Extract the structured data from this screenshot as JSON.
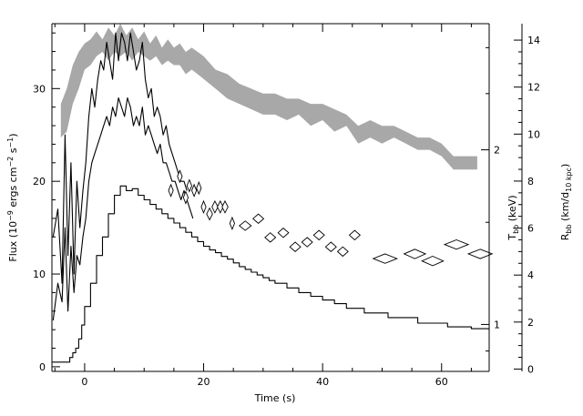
{
  "chart_data": {
    "type": "line",
    "title": "",
    "xlabel": "Time (s)",
    "xlim": [
      -5.5,
      68
    ],
    "x_ticks": [
      0,
      20,
      40,
      60
    ],
    "grid": false,
    "legend": "none",
    "axes": {
      "left": {
        "label": [
          "Flux (10",
          "−9",
          " ergs cm",
          "−2",
          " s",
          "−1",
          ")"
        ],
        "range": [
          -0.5,
          37
        ],
        "ticks": [
          0,
          10,
          20,
          30
        ]
      },
      "right_inner": {
        "label": [
          "T",
          "bb",
          " (keV)"
        ],
        "scale": "log",
        "range": [
          0.83,
          3.3
        ],
        "ticks": [
          1,
          2
        ]
      },
      "right_outer": {
        "label": [
          "R",
          "bb",
          " (km/d",
          "10 kpc",
          ")"
        ],
        "range": [
          -0.1,
          14.7
        ],
        "ticks": [
          0,
          2,
          4,
          6,
          8,
          10,
          12,
          14
        ]
      }
    },
    "series": [
      {
        "kind": "flux-hires",
        "color": "#000000",
        "x": [
          -5.3,
          -4.5,
          -3.8,
          -3.3,
          -2.8,
          -2.3,
          -1.8,
          -1.3,
          -0.8,
          -0.3,
          0.2,
          0.7,
          1.2,
          1.7,
          2.2,
          2.7,
          3.2,
          3.7,
          4.2,
          4.7,
          5.2,
          5.7,
          6.2,
          6.7,
          7.2,
          7.7,
          8.2,
          8.7,
          9.2,
          9.7,
          10.2,
          10.7,
          11.2,
          11.7,
          12.2,
          12.7,
          13.2,
          13.7,
          14.2,
          14.7,
          15.2,
          15.7,
          16.2,
          16.7,
          17.2
        ],
        "y": [
          14,
          17,
          9,
          25,
          12,
          22,
          10,
          20,
          15,
          19,
          22,
          27,
          30,
          28,
          31,
          33,
          32,
          35,
          33,
          31,
          36,
          33,
          36,
          35,
          33,
          36,
          34,
          32,
          33,
          35,
          31,
          29,
          30,
          27,
          28,
          27,
          25,
          26,
          24,
          23,
          22,
          21,
          20,
          20,
          19
        ]
      },
      {
        "kind": "flux-hires",
        "color": "#000000",
        "x": [
          -5.3,
          -4.5,
          -3.8,
          -3.3,
          -2.8,
          -2.3,
          -1.8,
          -1.3,
          -0.8,
          -0.3,
          0.2,
          0.7,
          1.2,
          1.7,
          2.2,
          2.7,
          3.2,
          3.7,
          4.2,
          4.7,
          5.2,
          5.7,
          6.2,
          6.7,
          7.2,
          7.7,
          8.2,
          8.7,
          9.2,
          9.7,
          10.2,
          10.7,
          11.2,
          11.7,
          12.2,
          12.7,
          13.2,
          13.7,
          14.2,
          14.7,
          15.2,
          15.7,
          16.2,
          16.7,
          17.2,
          17.7,
          18.2
        ],
        "y": [
          5,
          9,
          7,
          15,
          6,
          13,
          8,
          12,
          11,
          14,
          16,
          20,
          22,
          23,
          24,
          25,
          26,
          27,
          26,
          28,
          27,
          29,
          28,
          27,
          29,
          28,
          26,
          27,
          26,
          28,
          25,
          26,
          25,
          24,
          23,
          24,
          22,
          22,
          21,
          20,
          20,
          19,
          18,
          19,
          18,
          17,
          16
        ]
      },
      {
        "kind": "flux-binned",
        "color": "#000000",
        "x": [
          -5.5,
          -3.5,
          -2.5,
          -2.0,
          -1.5,
          -1.0,
          -0.5,
          0.0,
          1.0,
          2.0,
          3.0,
          4.0,
          5.0,
          6.0,
          7.0,
          8.0,
          9.0,
          10.0,
          11.0,
          12.0,
          13.0,
          14.0,
          15.0,
          16.0,
          17.0,
          18.0,
          19.0,
          20.0,
          21.0,
          22.0,
          23.0,
          24.0,
          25.0,
          26.0,
          27.0,
          28.0,
          29.0,
          30.0,
          31.0,
          32.0,
          34.0,
          36.0,
          38.0,
          40.0,
          42.0,
          44.0,
          47.0,
          51.0,
          56.0,
          61.0,
          65.0,
          68.0
        ],
        "y": [
          0.5,
          0.5,
          1.0,
          1.5,
          2.0,
          3.0,
          4.5,
          6.5,
          9.0,
          12.0,
          14.0,
          16.5,
          18.5,
          19.5,
          19.0,
          19.2,
          18.5,
          18.0,
          17.5,
          17.0,
          16.5,
          16.0,
          15.5,
          15.0,
          14.5,
          14.0,
          13.5,
          13.0,
          12.6,
          12.3,
          11.9,
          11.6,
          11.2,
          10.8,
          10.5,
          10.2,
          9.9,
          9.6,
          9.3,
          9.0,
          8.5,
          8.0,
          7.6,
          7.2,
          6.8,
          6.3,
          5.8,
          5.3,
          4.7,
          4.3,
          4.1,
          4.0
        ]
      }
    ],
    "kT_band": {
      "color": "#a8a8a8",
      "x": [
        -4,
        -3,
        -2,
        -1,
        0,
        1,
        2,
        3,
        4,
        5,
        6,
        7,
        8,
        9,
        10,
        11,
        12,
        13,
        14,
        15,
        16,
        17,
        18,
        19,
        20,
        22,
        24,
        26,
        28,
        30,
        32,
        34,
        36,
        38,
        40,
        42,
        44,
        46,
        48,
        50,
        52,
        54,
        56,
        58,
        60,
        62,
        64,
        66
      ],
      "lo": [
        2.1,
        2.15,
        2.4,
        2.55,
        2.75,
        2.8,
        2.9,
        2.95,
        2.85,
        2.95,
        2.9,
        2.95,
        2.85,
        2.95,
        2.9,
        2.85,
        2.9,
        2.8,
        2.85,
        2.8,
        2.8,
        2.7,
        2.75,
        2.7,
        2.65,
        2.55,
        2.45,
        2.4,
        2.35,
        2.3,
        2.3,
        2.25,
        2.3,
        2.2,
        2.25,
        2.15,
        2.2,
        2.05,
        2.1,
        2.05,
        2.1,
        2.05,
        2.0,
        2.0,
        1.95,
        1.85,
        1.85,
        1.85
      ],
      "hi": [
        2.4,
        2.55,
        2.8,
        2.95,
        3.05,
        3.1,
        3.2,
        3.1,
        3.25,
        3.15,
        3.3,
        3.15,
        3.25,
        3.1,
        3.2,
        3.05,
        3.15,
        3.0,
        3.1,
        3.0,
        3.05,
        2.95,
        3.0,
        2.95,
        2.9,
        2.75,
        2.7,
        2.6,
        2.55,
        2.5,
        2.5,
        2.45,
        2.45,
        2.4,
        2.4,
        2.35,
        2.3,
        2.2,
        2.25,
        2.2,
        2.2,
        2.15,
        2.1,
        2.1,
        2.05,
        1.95,
        1.95,
        1.95
      ]
    },
    "radius_points": {
      "marker": "diamond",
      "x": [
        14.5,
        16.0,
        17.0,
        17.6,
        18.4,
        19.2,
        20.0,
        21.0,
        21.9,
        22.8,
        23.6,
        24.8,
        27.0,
        29.2,
        31.2,
        33.4,
        35.4,
        37.4,
        39.4,
        41.4,
        43.4,
        45.4,
        50.5,
        55.5,
        58.5,
        62.5,
        66.5
      ],
      "y": [
        7.6,
        8.2,
        7.3,
        7.8,
        7.6,
        7.7,
        6.9,
        6.6,
        6.9,
        6.9,
        6.9,
        6.2,
        6.1,
        6.4,
        5.6,
        5.8,
        5.2,
        5.4,
        5.7,
        5.2,
        5.0,
        5.7,
        4.7,
        4.9,
        4.6,
        5.3,
        4.9
      ],
      "w": [
        0.8,
        0.8,
        0.8,
        0.8,
        0.8,
        0.8,
        0.8,
        1.0,
        1.0,
        1.0,
        1.0,
        0.8,
        2.0,
        1.8,
        1.8,
        1.8,
        1.8,
        1.8,
        1.8,
        1.8,
        1.8,
        1.8,
        4.0,
        3.6,
        3.6,
        4.0,
        4.0
      ],
      "h": [
        0.5,
        0.5,
        0.5,
        0.5,
        0.5,
        0.5,
        0.5,
        0.5,
        0.5,
        0.5,
        0.5,
        0.5,
        0.4,
        0.4,
        0.4,
        0.4,
        0.4,
        0.4,
        0.4,
        0.4,
        0.4,
        0.4,
        0.4,
        0.4,
        0.4,
        0.4,
        0.4
      ]
    }
  }
}
